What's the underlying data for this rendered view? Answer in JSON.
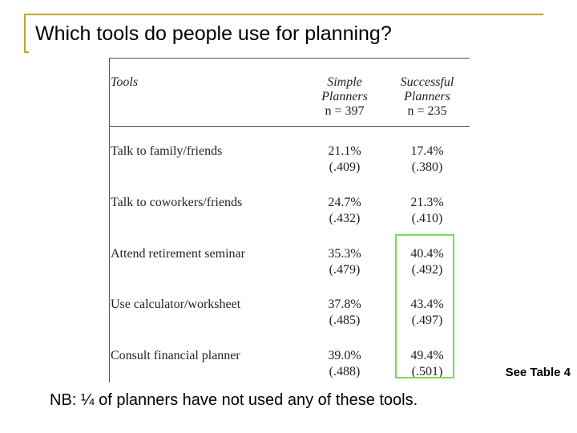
{
  "title": "Which tools do people use for planning?",
  "table": {
    "header": {
      "tools": "Tools",
      "simple": [
        "Simple",
        "Planners",
        "n = 397"
      ],
      "successful": [
        "Successful",
        "Planners",
        "n = 235"
      ]
    },
    "rows": [
      {
        "label": "Talk to family/friends",
        "simple": "21.1%",
        "simple_se": "(.409)",
        "successful": "17.4%",
        "successful_se": "(.380)"
      },
      {
        "label": "Talk to coworkers/friends",
        "simple": "24.7%",
        "simple_se": "(.432)",
        "successful": "21.3%",
        "successful_se": "(.410)"
      },
      {
        "label": "Attend retirement seminar",
        "simple": "35.3%",
        "simple_se": "(.479)",
        "successful": "40.4%",
        "successful_se": "(.492)"
      },
      {
        "label": "Use calculator/worksheet",
        "simple": "37.8%",
        "simple_se": "(.485)",
        "successful": "43.4%",
        "successful_se": "(.497)"
      },
      {
        "label": "Consult financial planner",
        "simple": "39.0%",
        "simple_se": "(.488)",
        "successful": "49.4%",
        "successful_se": "(.501)"
      }
    ]
  },
  "see_table": "See Table 4",
  "note": "NB: ¼ of planners have not used any of these tools.",
  "colors": {
    "frame": "#c2a62a",
    "highlight": "#7ed957"
  }
}
